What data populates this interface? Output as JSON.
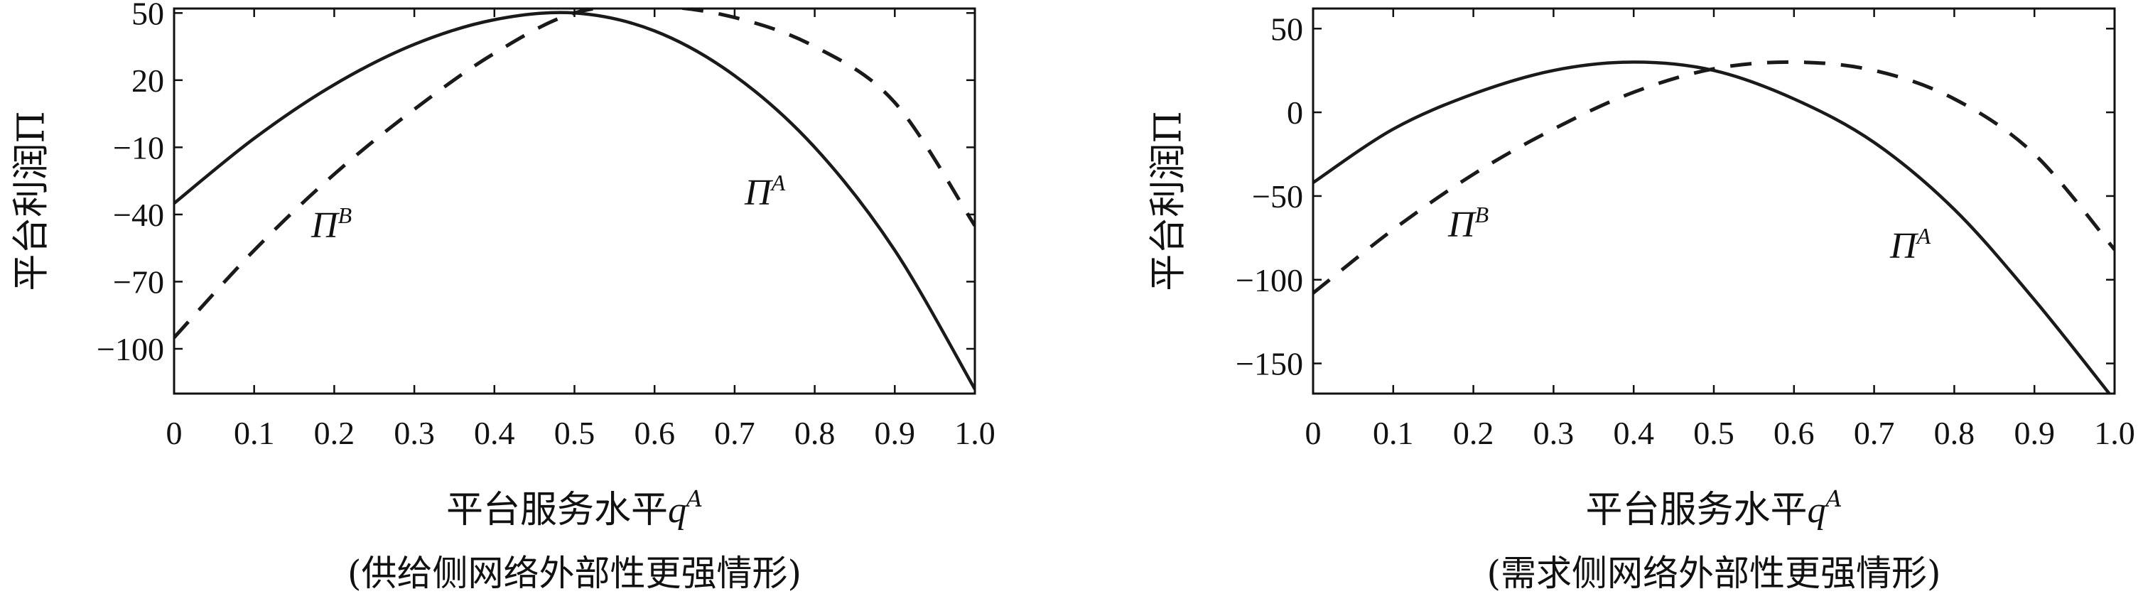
{
  "chart_data": [
    {
      "type": "line",
      "caption": "(供给侧网络外部性更强情形)",
      "xlabel": "平台服务水平q",
      "xlabel_sup": "A",
      "ylabel": "平台利润Π",
      "xlim": [
        0,
        1.0
      ],
      "ylim": [
        -120,
        52
      ],
      "xticks": [
        0,
        0.1,
        0.2,
        0.3,
        0.4,
        0.5,
        0.6,
        0.7,
        0.8,
        0.9,
        1.0
      ],
      "xtick_labels": [
        "0",
        "0.1",
        "0.2",
        "0.3",
        "0.4",
        "0.5",
        "0.6",
        "0.7",
        "0.8",
        "0.9",
        "1.0"
      ],
      "yticks": [
        50,
        20,
        -10,
        -40,
        -70,
        -100
      ],
      "ytick_labels": [
        "50",
        "20",
        "−10",
        "−40",
        "−70",
        "−100"
      ],
      "grid": false,
      "series": [
        {
          "name": "Π^A",
          "label_base": "Π",
          "label_sup": "A",
          "style": "solid",
          "x": [
            0,
            0.1,
            0.2,
            0.3,
            0.4,
            0.5,
            0.6,
            0.7,
            0.8,
            0.9,
            1.0
          ],
          "y": [
            -35,
            -6,
            18,
            36,
            47,
            50,
            42,
            22,
            -10,
            -56,
            -118
          ]
        },
        {
          "name": "Π^B",
          "label_base": "Π",
          "label_sup": "B",
          "style": "dashed",
          "x": [
            0,
            0.1,
            0.2,
            0.3,
            0.4,
            0.5,
            0.6,
            0.7,
            0.8,
            0.9,
            1.0
          ],
          "y": [
            -95,
            -56,
            -22,
            7,
            32,
            50,
            53,
            48,
            35,
            10,
            -45
          ]
        }
      ]
    },
    {
      "type": "line",
      "caption": "(需求侧网络外部性更强情形)",
      "xlabel": "平台服务水平q",
      "xlabel_sup": "A",
      "ylabel": "平台利润Π",
      "xlim": [
        0,
        1.0
      ],
      "ylim": [
        -168,
        62
      ],
      "xticks": [
        0,
        0.1,
        0.2,
        0.3,
        0.4,
        0.5,
        0.6,
        0.7,
        0.8,
        0.9,
        1.0
      ],
      "xtick_labels": [
        "0",
        "0.1",
        "0.2",
        "0.3",
        "0.4",
        "0.5",
        "0.6",
        "0.7",
        "0.8",
        "0.9",
        "1.0"
      ],
      "yticks": [
        50,
        0,
        -50,
        -100,
        -150
      ],
      "ytick_labels": [
        "50",
        "0",
        "−50",
        "−100",
        "−150"
      ],
      "grid": false,
      "series": [
        {
          "name": "Π^A",
          "label_base": "Π",
          "label_sup": "A",
          "style": "solid",
          "x": [
            0,
            0.1,
            0.2,
            0.3,
            0.4,
            0.5,
            0.6,
            0.7,
            0.8,
            0.9,
            1.0
          ],
          "y": [
            -42,
            -10,
            11,
            25,
            30,
            25,
            8,
            -18,
            -58,
            -112,
            -172
          ]
        },
        {
          "name": "Π^B",
          "label_base": "Π",
          "label_sup": "B",
          "style": "dashed",
          "x": [
            0,
            0.1,
            0.2,
            0.3,
            0.4,
            0.5,
            0.6,
            0.7,
            0.8,
            0.9,
            1.0
          ],
          "y": [
            -108,
            -70,
            -37,
            -10,
            12,
            26,
            30,
            25,
            8,
            -25,
            -82
          ]
        }
      ]
    }
  ]
}
